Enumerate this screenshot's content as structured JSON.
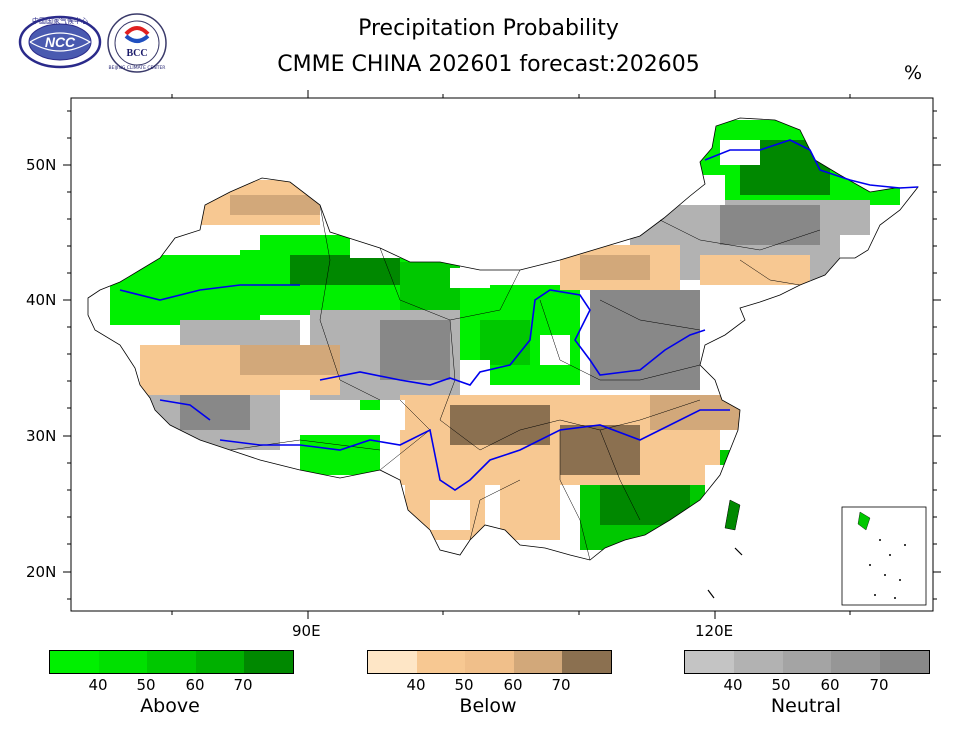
{
  "title": {
    "line1": "Precipitation Probability",
    "line2": "CMME CHINA 202601 forecast:202605",
    "unit": "%"
  },
  "logos": {
    "left": "NCC",
    "right": "BCC",
    "left_ring_text": "中国国家气候中心",
    "right_ring_text": "BEIJING CLIMATE CENTER"
  },
  "axes": {
    "lat_labels": [
      "50N",
      "40N",
      "30N",
      "20N"
    ],
    "lon_labels": [
      "90E",
      "120E"
    ]
  },
  "legend": {
    "above": {
      "name": "Above",
      "ticks": [
        "40",
        "50",
        "60",
        "70"
      ],
      "colors": [
        "#00f000",
        "#00e000",
        "#00c800",
        "#00b000",
        "#008800"
      ]
    },
    "below": {
      "name": "Below",
      "ticks": [
        "40",
        "50",
        "60",
        "70"
      ],
      "colors": [
        "#fee6c6",
        "#f7c892",
        "#f0bf8a",
        "#d2a87a",
        "#8b7050"
      ]
    },
    "neutral": {
      "name": "Neutral",
      "ticks": [
        "40",
        "50",
        "60",
        "70"
      ],
      "colors": [
        "#c4c4c4",
        "#b2b2b2",
        "#a4a4a4",
        "#969696",
        "#888888"
      ]
    }
  },
  "map_colors": {
    "above_light": "#00f000",
    "above_mid": "#00c800",
    "above_dark": "#008800",
    "below_light": "#f7c892",
    "below_mid": "#d2a87a",
    "below_dark": "#8b7050",
    "neutral_light": "#b2b2b2",
    "neutral_dark": "#888888",
    "river": "#0000ee",
    "border": "#000000"
  }
}
